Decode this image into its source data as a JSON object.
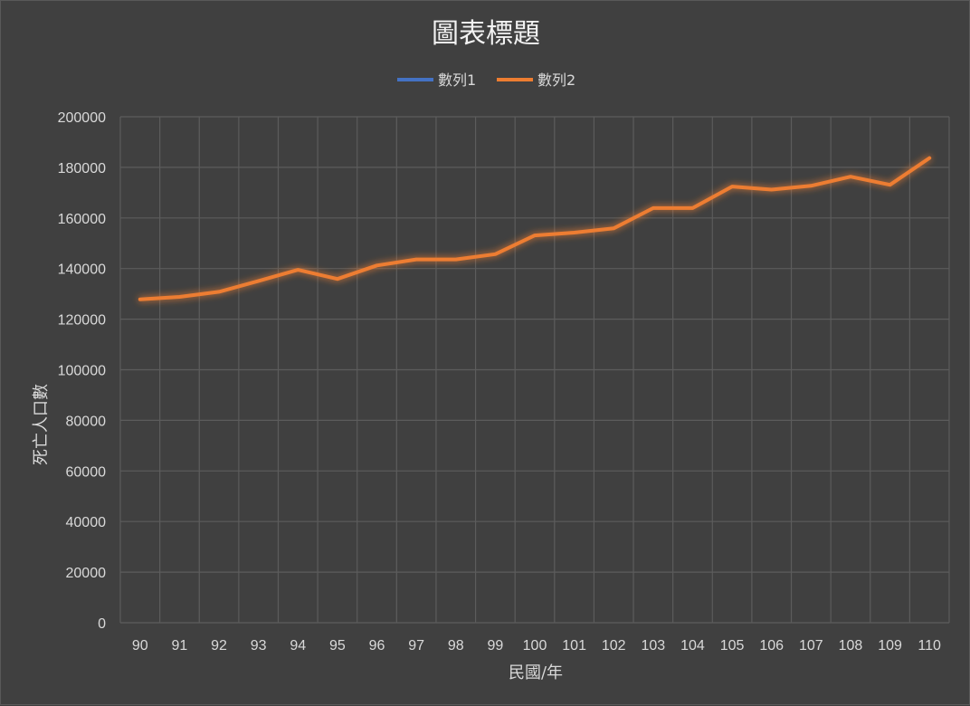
{
  "chart_data": {
    "type": "line",
    "title": "圖表標題",
    "xlabel": "民國/年",
    "ylabel": "死亡人口數",
    "categories": [
      "90",
      "91",
      "92",
      "93",
      "94",
      "95",
      "96",
      "97",
      "98",
      "99",
      "100",
      "101",
      "102",
      "103",
      "104",
      "105",
      "106",
      "107",
      "108",
      "109",
      "110"
    ],
    "series": [
      {
        "name": "數列1",
        "color": "#4472c4",
        "values": [
          0,
          0,
          0,
          0,
          0,
          0,
          0,
          0,
          0,
          0,
          0,
          0,
          0,
          0,
          0,
          0,
          0,
          0,
          0,
          0,
          0
        ]
      },
      {
        "name": "數列2",
        "color": "#ed7d31",
        "values": [
          127800,
          128800,
          130800,
          135100,
          139500,
          135900,
          141200,
          143600,
          143600,
          145700,
          153100,
          154200,
          155900,
          163900,
          163900,
          172400,
          171200,
          172700,
          176300,
          173100,
          183700
        ]
      }
    ],
    "ylim": [
      0,
      200000
    ],
    "yticks": [
      0,
      20000,
      40000,
      60000,
      80000,
      100000,
      120000,
      140000,
      160000,
      180000,
      200000
    ],
    "grid": true,
    "legend_position": "top"
  }
}
